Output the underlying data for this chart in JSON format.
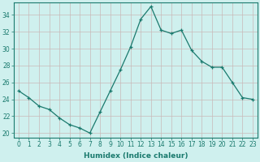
{
  "x": [
    0,
    1,
    2,
    3,
    4,
    5,
    6,
    7,
    8,
    9,
    10,
    11,
    12,
    13,
    14,
    15,
    16,
    17,
    18,
    19,
    20,
    21,
    22,
    23
  ],
  "y": [
    25.0,
    24.2,
    23.2,
    22.8,
    21.8,
    21.0,
    20.6,
    20.0,
    22.5,
    25.0,
    27.5,
    30.2,
    33.5,
    35.0,
    32.2,
    31.8,
    32.2,
    29.8,
    28.5,
    27.8,
    27.8,
    26.0,
    24.2,
    24.0
  ],
  "line_color": "#1a7a6e",
  "marker": "+",
  "marker_size": 3.5,
  "bg_color": "#cff0ee",
  "grid_color": "#c8b8b8",
  "xlabel": "Humidex (Indice chaleur)",
  "xlim": [
    -0.5,
    23.5
  ],
  "ylim": [
    19.5,
    35.5
  ],
  "yticks": [
    20,
    22,
    24,
    26,
    28,
    30,
    32,
    34
  ],
  "xticks": [
    0,
    1,
    2,
    3,
    4,
    5,
    6,
    7,
    8,
    9,
    10,
    11,
    12,
    13,
    14,
    15,
    16,
    17,
    18,
    19,
    20,
    21,
    22,
    23
  ],
  "xlabel_fontsize": 6.5,
  "tick_fontsize": 5.5
}
